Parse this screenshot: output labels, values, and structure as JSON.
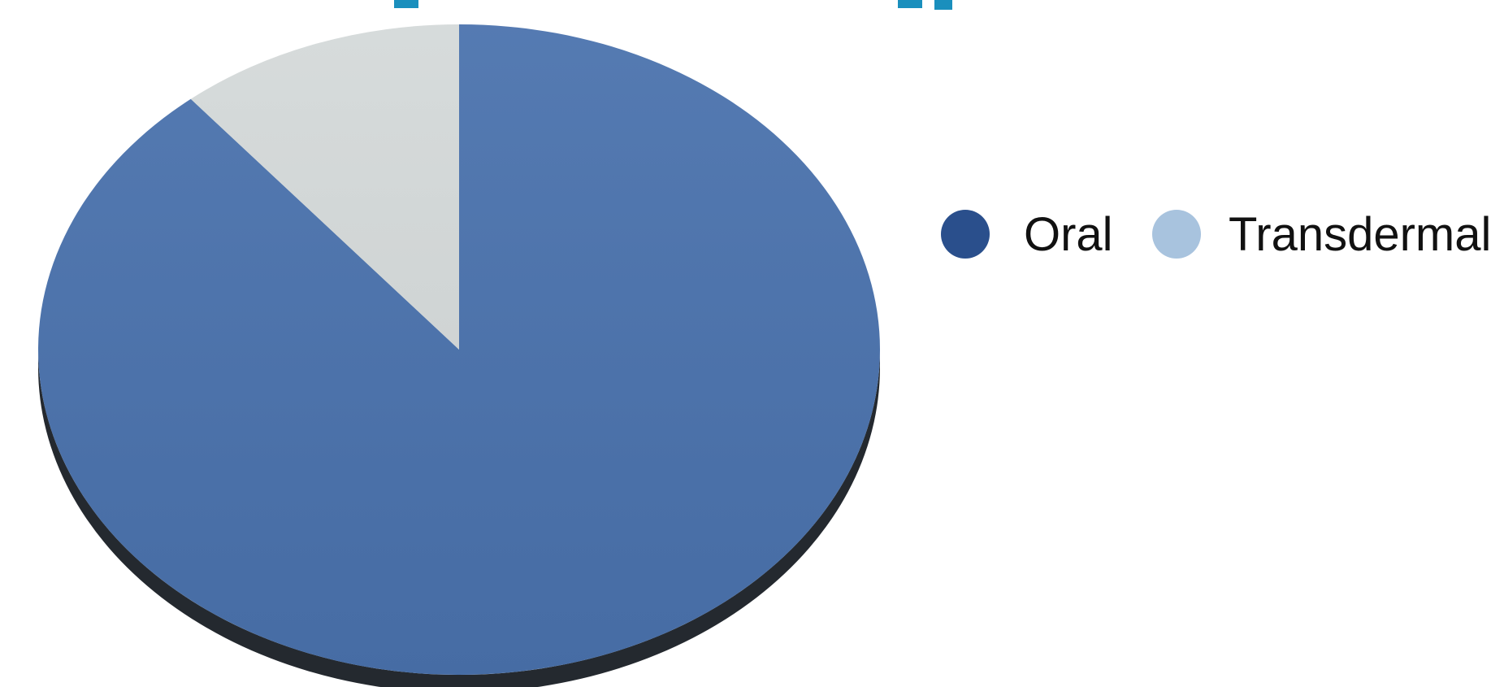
{
  "chart_data": {
    "type": "pie",
    "title": "",
    "categories": [
      "Oral",
      "Transdermal"
    ],
    "values": [
      89,
      11
    ],
    "colors": [
      "#4a72ad",
      "#d4d9d9"
    ],
    "legend": {
      "position": "right",
      "entries": [
        {
          "label": "Oral",
          "color": "#2a4f8c"
        },
        {
          "label": "Transdermal",
          "color": "#a8c3de"
        }
      ]
    },
    "style": "3d-tilted"
  },
  "theme": {
    "depth_color": "#24292f",
    "title_color": "#1a8fbd"
  }
}
